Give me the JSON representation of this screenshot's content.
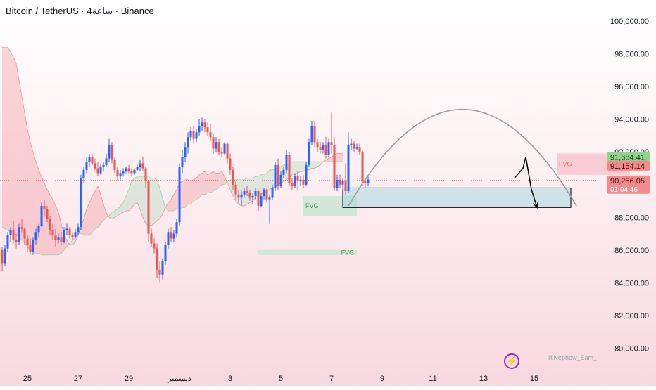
{
  "header": {
    "title": "Bitcoin / TetherUS · 4ساعة · Binance"
  },
  "watermark": "@Nephew_Sam_",
  "logo_glyph": "⚡",
  "colors": {
    "up": "#2962ff",
    "down": "#ef5350",
    "cloud_bear": "#f5a3ad",
    "cloud_bull": "#a5d6b7",
    "fvg_green": "#b9e4c9",
    "fvg_red": "#f6b6be",
    "zone_fill": "#a7d8e2",
    "tag_green": "#8fd18f",
    "tag_red": "#f28b8b"
  },
  "chart_data": {
    "type": "candlestick",
    "title": "Bitcoin / TetherUS · 4ساعة · Binance",
    "ylim": [
      79000,
      101000
    ],
    "y_ticks": [
      "100,000.00",
      "98,000.00",
      "96,000.00",
      "94,000.00",
      "92,000.00",
      "90,000.00",
      "88,000.00",
      "86,000.00",
      "84,000.00",
      "82,000.00",
      "80,000.00"
    ],
    "y_tick_values": [
      100000,
      98000,
      96000,
      94000,
      92000,
      90000,
      88000,
      86000,
      84000,
      82000,
      80000
    ],
    "x_labels": [
      "25",
      "27",
      "29",
      "ديسمبر",
      "3",
      "5",
      "7",
      "9",
      "11",
      "13",
      "15"
    ],
    "x_label_index": [
      9,
      27,
      45,
      63,
      81,
      99,
      117,
      135,
      153,
      171,
      189
    ],
    "candles": [
      [
        86000,
        86200,
        84700,
        85200
      ],
      [
        85200,
        86300,
        85000,
        86100
      ],
      [
        86100,
        87100,
        85900,
        86900
      ],
      [
        86900,
        87400,
        86500,
        87200
      ],
      [
        87200,
        87800,
        86400,
        86600
      ],
      [
        86600,
        87000,
        86100,
        86500
      ],
      [
        86500,
        87600,
        86300,
        87400
      ],
      [
        87400,
        87900,
        87100,
        87300
      ],
      [
        87300,
        87400,
        86300,
        86700
      ],
      [
        86700,
        86900,
        85900,
        86300
      ],
      [
        86300,
        86700,
        85700,
        85900
      ],
      [
        85900,
        86800,
        85700,
        86600
      ],
      [
        86600,
        87300,
        86300,
        87100
      ],
      [
        87100,
        87600,
        86800,
        87500
      ],
      [
        87500,
        88900,
        87400,
        88700
      ],
      [
        88700,
        89100,
        88100,
        88500
      ],
      [
        88500,
        88700,
        87700,
        87900
      ],
      [
        87900,
        88100,
        86900,
        87200
      ],
      [
        87200,
        87600,
        86600,
        86900
      ],
      [
        86900,
        87300,
        86200,
        86600
      ],
      [
        86600,
        87000,
        86400,
        86800
      ],
      [
        86800,
        87100,
        86300,
        86500
      ],
      [
        86500,
        87400,
        86400,
        87200
      ],
      [
        87200,
        87600,
        86900,
        87300
      ],
      [
        87300,
        87400,
        86700,
        86900
      ],
      [
        86900,
        87100,
        86600,
        86800
      ],
      [
        86800,
        87300,
        86700,
        87100
      ],
      [
        87100,
        87600,
        86900,
        87400
      ],
      [
        87400,
        90600,
        87200,
        90400
      ],
      [
        90400,
        91100,
        90100,
        90900
      ],
      [
        90900,
        91700,
        90700,
        91400
      ],
      [
        91400,
        91900,
        91100,
        91700
      ],
      [
        91700,
        91900,
        91200,
        91300
      ],
      [
        91300,
        91600,
        90900,
        91000
      ],
      [
        91000,
        91400,
        90500,
        90700
      ],
      [
        90700,
        91300,
        90600,
        91100
      ],
      [
        91100,
        91400,
        90800,
        91200
      ],
      [
        91200,
        91900,
        91100,
        91600
      ],
      [
        91600,
        92800,
        91400,
        92400
      ],
      [
        92400,
        92600,
        91300,
        91500
      ],
      [
        91500,
        91700,
        90700,
        90900
      ],
      [
        90900,
        91100,
        90200,
        90500
      ],
      [
        90500,
        90900,
        90300,
        90700
      ],
      [
        90700,
        91000,
        90500,
        90800
      ],
      [
        90800,
        91100,
        90700,
        91000
      ],
      [
        91000,
        91200,
        90700,
        90800
      ],
      [
        90800,
        91000,
        90500,
        90700
      ],
      [
        90700,
        91000,
        90600,
        90900
      ],
      [
        90900,
        91200,
        90800,
        91100
      ],
      [
        91100,
        91500,
        90800,
        91300
      ],
      [
        91300,
        91700,
        90800,
        91000
      ],
      [
        91000,
        91100,
        89800,
        90200
      ],
      [
        90200,
        90300,
        86500,
        87000
      ],
      [
        87000,
        87300,
        86200,
        86400
      ],
      [
        86400,
        86700,
        85800,
        86100
      ],
      [
        86100,
        86400,
        84300,
        84800
      ],
      [
        84800,
        85300,
        84000,
        84500
      ],
      [
        84500,
        85500,
        84200,
        85300
      ],
      [
        85300,
        86500,
        85100,
        86300
      ],
      [
        86300,
        87300,
        86100,
        87100
      ],
      [
        87100,
        87400,
        86500,
        86700
      ],
      [
        86700,
        87200,
        86500,
        87000
      ],
      [
        87000,
        87900,
        86800,
        87700
      ],
      [
        87700,
        91300,
        87500,
        91100
      ],
      [
        91100,
        92100,
        90700,
        91700
      ],
      [
        91700,
        92600,
        91400,
        92300
      ],
      [
        92300,
        93200,
        91900,
        92900
      ],
      [
        92900,
        93500,
        92700,
        93300
      ],
      [
        93300,
        93600,
        92500,
        92800
      ],
      [
        92800,
        93400,
        92600,
        93200
      ],
      [
        93200,
        94000,
        93000,
        93600
      ],
      [
        93600,
        94100,
        93300,
        93800
      ],
      [
        93800,
        94000,
        93200,
        93500
      ],
      [
        93500,
        93800,
        93000,
        93200
      ],
      [
        93200,
        93700,
        92700,
        92900
      ],
      [
        92900,
        93100,
        91900,
        92200
      ],
      [
        92200,
        92900,
        92000,
        92600
      ],
      [
        92600,
        92800,
        91800,
        92000
      ],
      [
        92000,
        92300,
        91700,
        91900
      ],
      [
        91900,
        92600,
        91800,
        92500
      ],
      [
        92500,
        92600,
        91300,
        91600
      ],
      [
        91600,
        91900,
        90600,
        90900
      ],
      [
        90900,
        91100,
        89700,
        90000
      ],
      [
        90000,
        90200,
        89100,
        89400
      ],
      [
        89400,
        89700,
        88900,
        89200
      ],
      [
        89200,
        89600,
        88700,
        89400
      ],
      [
        89400,
        89800,
        89200,
        89600
      ],
      [
        89600,
        89900,
        89300,
        89500
      ],
      [
        89500,
        89700,
        89000,
        89200
      ],
      [
        89200,
        89500,
        88800,
        89300
      ],
      [
        89300,
        89800,
        89100,
        89600
      ],
      [
        89600,
        89700,
        88400,
        88700
      ],
      [
        88700,
        89500,
        88600,
        89300
      ],
      [
        89300,
        89800,
        89100,
        89700
      ],
      [
        89700,
        89800,
        88900,
        89100
      ],
      [
        89100,
        89400,
        87600,
        89200
      ],
      [
        89200,
        90000,
        89100,
        89800
      ],
      [
        89800,
        91400,
        89600,
        91200
      ],
      [
        91200,
        91600,
        89700,
        89900
      ],
      [
        89900,
        90800,
        89800,
        90600
      ],
      [
        90600,
        91100,
        90400,
        90900
      ],
      [
        90900,
        92100,
        90700,
        91800
      ],
      [
        91800,
        92000,
        89900,
        90100
      ],
      [
        90100,
        90400,
        89700,
        89900
      ],
      [
        89900,
        90700,
        89800,
        90500
      ],
      [
        90500,
        90800,
        89700,
        90200
      ],
      [
        90200,
        90500,
        89900,
        90300
      ],
      [
        90300,
        90600,
        89800,
        90000
      ],
      [
        90000,
        91400,
        89900,
        91200
      ],
      [
        91200,
        92800,
        91100,
        92600
      ],
      [
        92600,
        93900,
        92400,
        93600
      ],
      [
        93600,
        93900,
        92300,
        92600
      ],
      [
        92600,
        92800,
        92000,
        92300
      ],
      [
        92300,
        92600,
        91900,
        92100
      ],
      [
        92100,
        92600,
        91900,
        92400
      ],
      [
        92400,
        92900,
        91600,
        91800
      ],
      [
        91800,
        92800,
        91700,
        92600
      ],
      [
        92600,
        94400,
        91900,
        92400
      ],
      [
        92400,
        92900,
        89600,
        89800
      ],
      [
        89800,
        90600,
        89600,
        90300
      ],
      [
        90300,
        90600,
        89800,
        90000
      ],
      [
        90000,
        90400,
        89700,
        90200
      ],
      [
        90200,
        91300,
        89400,
        89600
      ],
      [
        89600,
        93200,
        89500,
        92400
      ],
      [
        92400,
        92800,
        92100,
        92500
      ],
      [
        92500,
        92700,
        92000,
        92200
      ],
      [
        92200,
        92500,
        92100,
        92300
      ],
      [
        92300,
        92500,
        91800,
        92000
      ],
      [
        92000,
        92100,
        89900,
        90200
      ],
      [
        90200,
        90400,
        89800,
        90100
      ],
      [
        90100,
        90500,
        89900,
        90300
      ]
    ],
    "ichimoku_cloud": {
      "span_a": [
        98400,
        98400,
        98400,
        98100,
        97800,
        97400,
        96400,
        95400,
        94400,
        93400,
        92600,
        92000,
        91400,
        90900,
        90500,
        90100,
        89700,
        89400,
        89100,
        88700,
        88300,
        87600,
        87000,
        86600,
        86300,
        86300,
        86500,
        86900,
        87400,
        87900,
        88500,
        88900,
        89300,
        89600,
        89900,
        89400,
        88800,
        88300,
        88000,
        87900,
        88000,
        88100,
        88200,
        88300,
        88400,
        88400,
        88600,
        88800,
        88900,
        88500,
        88000,
        87600,
        87500,
        87500,
        87600,
        87800,
        87900,
        88200,
        88600,
        88900,
        89100,
        89400,
        89700,
        90100,
        90200,
        90300,
        90300,
        90200,
        90300,
        90400,
        90600,
        90700,
        90800,
        90600,
        90700,
        90800,
        90700,
        90700,
        90800,
        90500,
        90100,
        89700,
        89300,
        89000,
        88800,
        88700,
        88700,
        88800,
        88900,
        89000,
        89200,
        89300,
        89400,
        89500,
        89600,
        89700,
        89800,
        89900,
        90000,
        90100,
        90200,
        90300,
        90400,
        90600,
        90600,
        90700,
        90800,
        90800,
        90900,
        90900,
        91000,
        91000,
        91100,
        91200,
        91400,
        91500,
        91600,
        91700,
        91800,
        91900,
        91900,
        91900
      ],
      "span_b": [
        87400,
        87300,
        87200,
        87100,
        87000,
        86900,
        86800,
        86600,
        86400,
        86200,
        86000,
        85900,
        85800,
        85800,
        85700,
        85700,
        85700,
        85700,
        85700,
        85700,
        85700,
        85800,
        86000,
        86200,
        86400,
        86600,
        86800,
        87000,
        87000,
        86900,
        86900,
        86900,
        87100,
        87300,
        87400,
        87600,
        87800,
        88000,
        88100,
        88300,
        88400,
        88500,
        88700,
        88900,
        89300,
        89700,
        90200,
        90400,
        90500,
        90500,
        90500,
        90500,
        90500,
        90400,
        90400,
        90300,
        89800,
        89200,
        88600,
        88400,
        88400,
        88400,
        88500,
        88500,
        88600,
        88600,
        88800,
        88800,
        89000,
        89100,
        89200,
        89400,
        89400,
        89500,
        89500,
        89600,
        89700,
        89800,
        90000,
        90000,
        90200,
        90300,
        90300,
        90300,
        90300,
        90300,
        90300,
        90400,
        90400,
        90400,
        90500,
        90500,
        90600,
        90600,
        90700,
        90900,
        90900,
        91000,
        91000,
        91100,
        91200,
        91200,
        91300,
        91400,
        91400,
        91400,
        91400,
        91400,
        91400,
        91400,
        91400,
        91400,
        91400,
        91400,
        91400,
        91400,
        91400,
        91400,
        91400,
        91400,
        91400,
        91400
      ],
      "offset": 0
    },
    "fvg_zones": [
      {
        "label": "FVG",
        "i0": 107,
        "i1": 126,
        "y0": 88100,
        "y1": 89300,
        "kind": "green"
      },
      {
        "label": "FVG",
        "i0": 91,
        "i1": 126,
        "y0": 85700,
        "y1": 86000,
        "kind": "green",
        "label_at": "right"
      },
      {
        "label": "FVG",
        "i0": 197,
        "i1": 223,
        "y0": 90600,
        "y1": 91900,
        "kind": "red"
      }
    ],
    "range_box": {
      "i0": 121,
      "i1": 202,
      "y0": 88600,
      "y1": 89800
    },
    "arc": {
      "i0": 123,
      "i1": 204,
      "y_base": 88700,
      "y_peak": 94600
    },
    "arrow": {
      "points": [
        [
          182,
          90400
        ],
        [
          185,
          91000
        ],
        [
          186,
          91700
        ],
        [
          188,
          89700
        ],
        [
          190,
          88600
        ]
      ]
    },
    "current_line": 90256.05,
    "price_tags": [
      {
        "text": "91,684.41",
        "value": 91684.41,
        "kind": "green"
      },
      {
        "text": "91,154.14",
        "value": 91154.14,
        "kind": "red"
      },
      {
        "text": "90,256.05",
        "value": 90256.05,
        "kind": "red",
        "sub": "01:04:46"
      }
    ],
    "grid": false,
    "legend": "none"
  }
}
